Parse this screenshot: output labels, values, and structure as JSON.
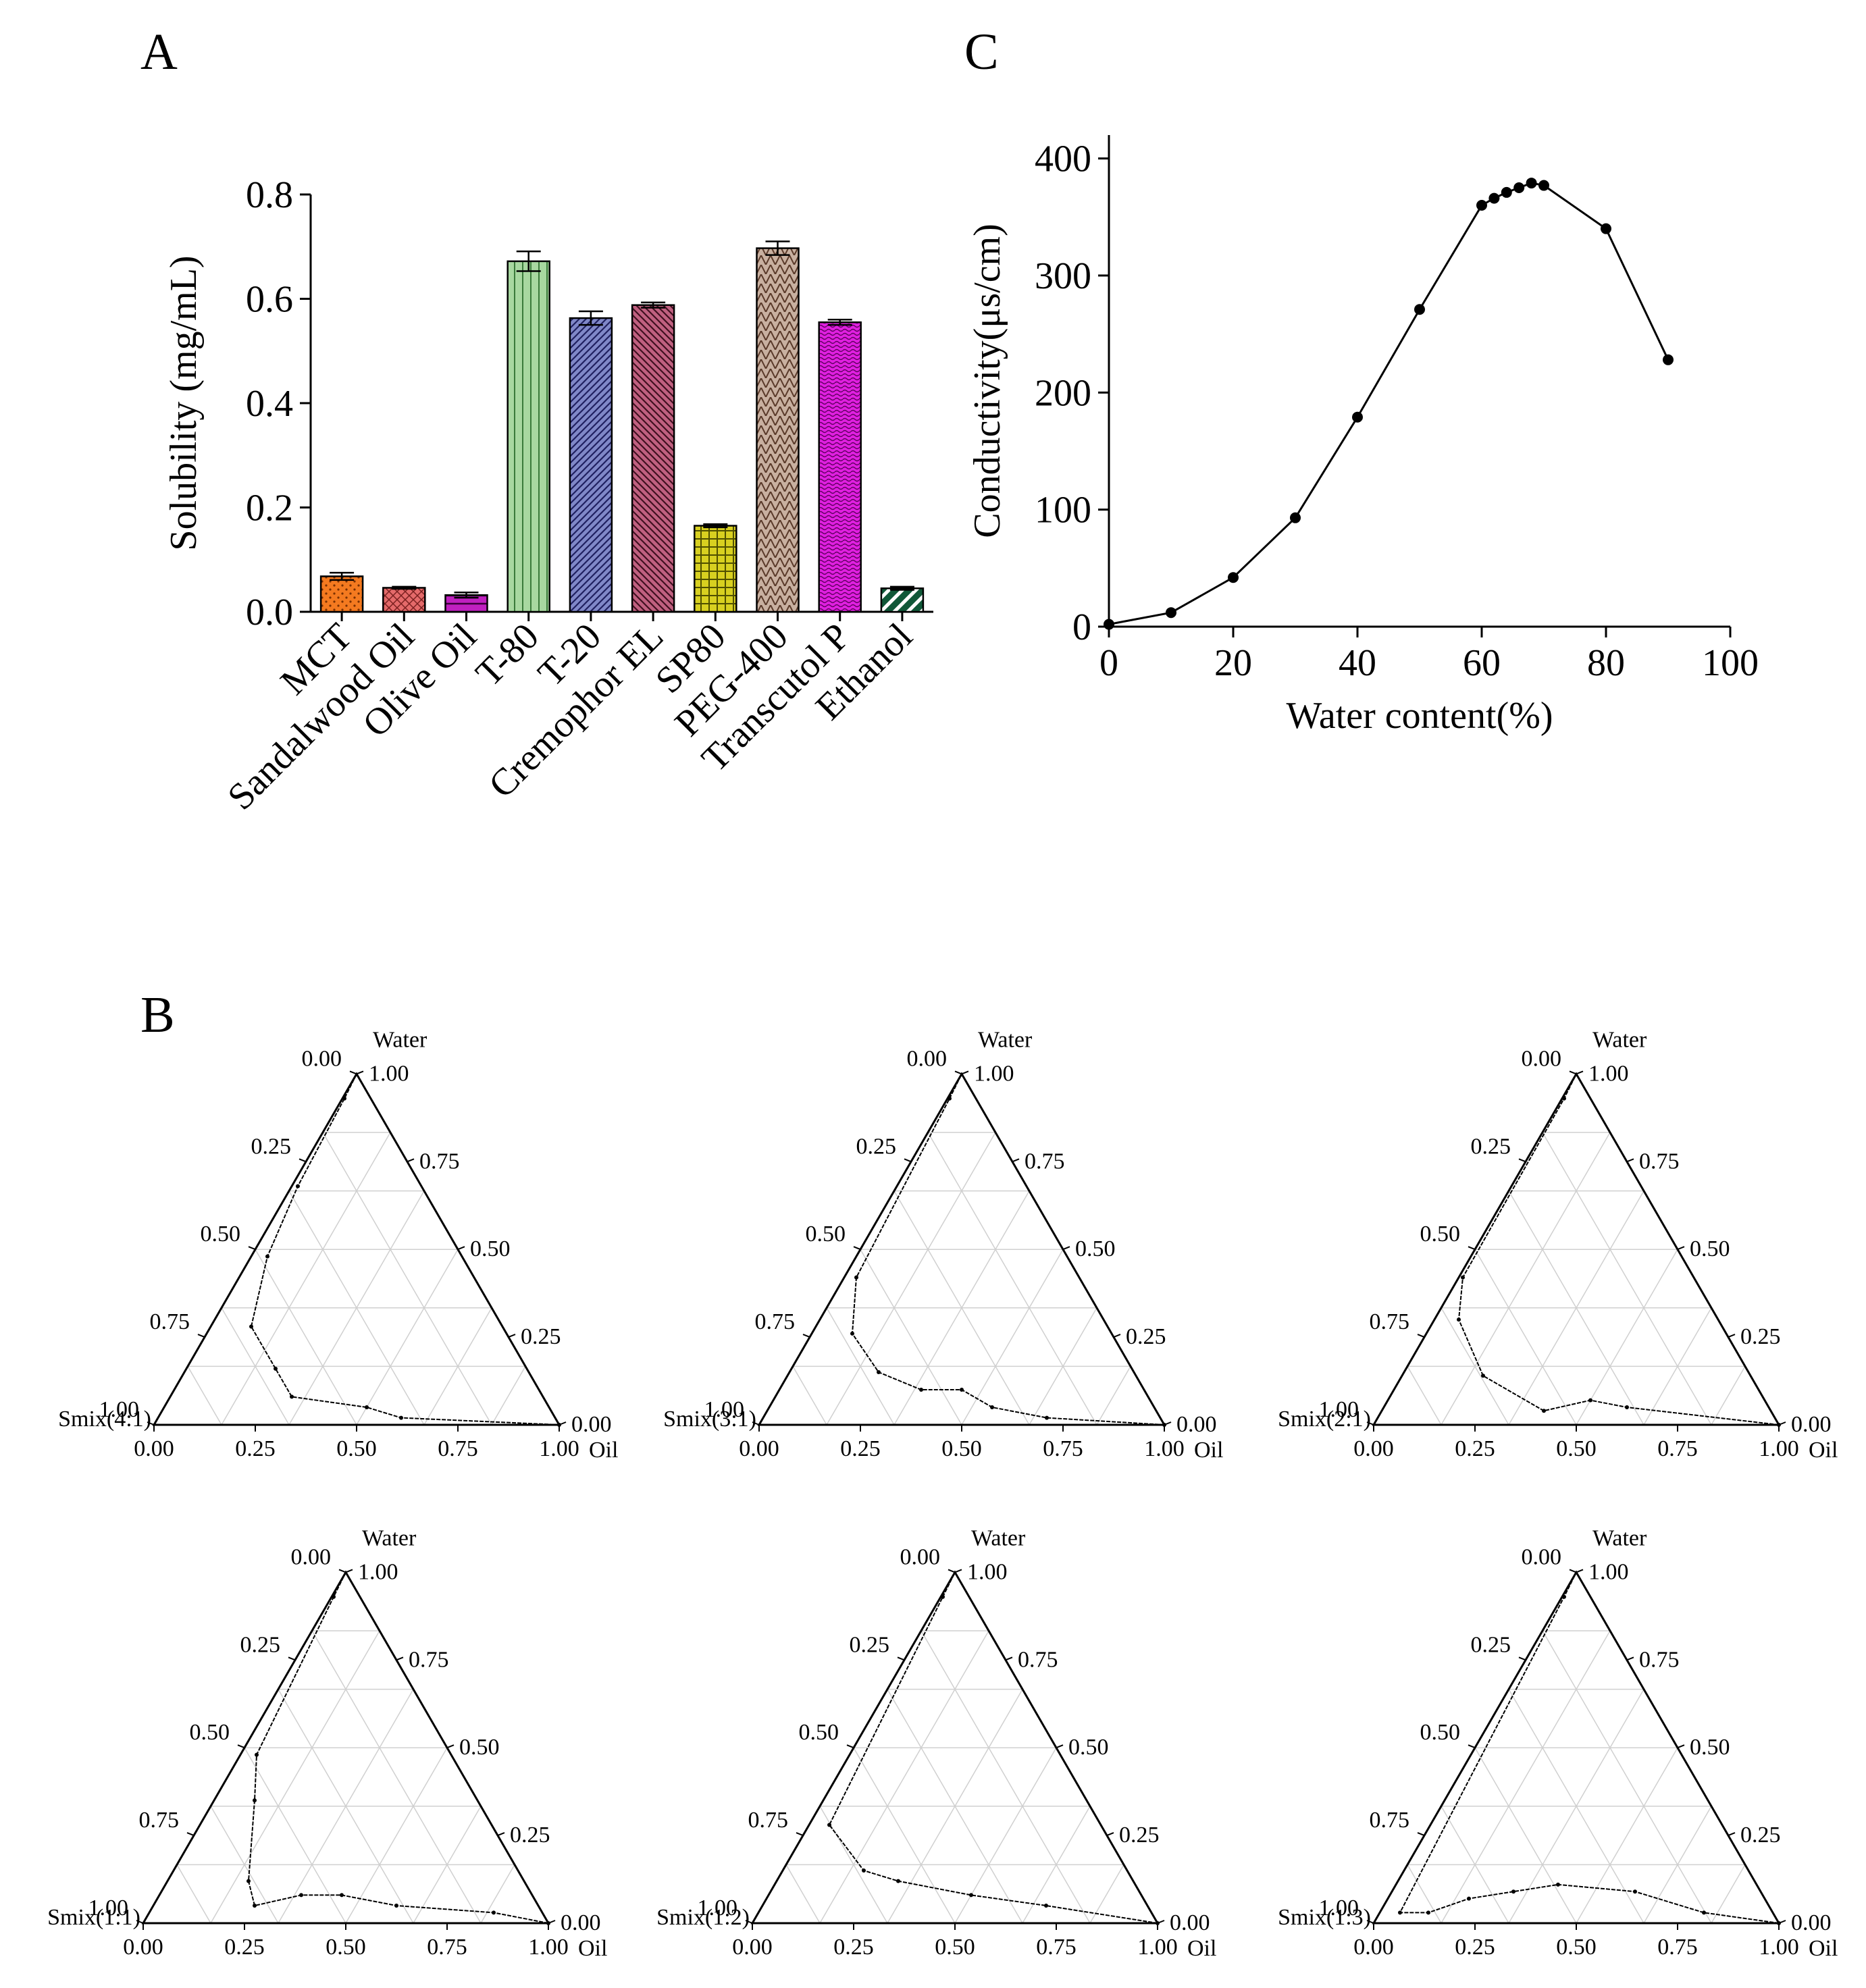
{
  "figure_labels": {
    "panel_a": "A",
    "panel_b": "B",
    "panel_c": "C"
  },
  "chart_data": [
    {
      "id": "A",
      "type": "bar",
      "title": "",
      "xlabel": "",
      "ylabel": "Solubility (mg/mL)",
      "ylim": [
        0,
        0.8
      ],
      "yticks": [
        "0.0",
        "0.2",
        "0.4",
        "0.6",
        "0.8"
      ],
      "categories": [
        "MCT",
        "Sandalwood Oil",
        "Olive Oil",
        "T-80",
        "T-20",
        "Cremophor EL",
        "SP80",
        "PEG-400",
        "Transcutol P",
        "Ethanol"
      ],
      "values": [
        0.068,
        0.046,
        0.032,
        0.672,
        0.563,
        0.588,
        0.165,
        0.697,
        0.555,
        0.045
      ],
      "errors": [
        0.007,
        0.002,
        0.005,
        0.019,
        0.013,
        0.005,
        0.003,
        0.013,
        0.005,
        0.003
      ],
      "colors": [
        "#f47a20",
        "#e46a6a",
        "#c020c0",
        "#a8d8a0",
        "#8088c8",
        "#c06080",
        "#d8d020",
        "#c8b0a0",
        "#e020e0",
        "#105838"
      ],
      "grid": false,
      "legend": "none"
    },
    {
      "id": "C",
      "type": "line",
      "title": "",
      "xlabel": "Water content(%)",
      "ylabel": "Conductivity(μs/cm)",
      "xlim": [
        0,
        100
      ],
      "ylim": [
        0,
        420
      ],
      "xticks": [
        "0",
        "20",
        "40",
        "60",
        "80",
        "100"
      ],
      "yticks": [
        "0",
        "100",
        "200",
        "300",
        "400"
      ],
      "x": [
        0,
        10,
        20,
        30,
        40,
        50,
        60,
        62,
        64,
        66,
        68,
        70,
        80,
        90
      ],
      "y": [
        2,
        12,
        42,
        93,
        179,
        271,
        360,
        366,
        371,
        375,
        379,
        377,
        340,
        228
      ],
      "grid": false,
      "legend": "none"
    },
    {
      "id": "B",
      "type": "ternary",
      "axis_labels": {
        "top": "Water",
        "right": "Oil"
      },
      "left_tick_labels": [
        "1.00",
        "0.75",
        "0.50",
        "0.25",
        "0.00"
      ],
      "right_tick_labels": [
        "1.00",
        "0.75",
        "0.50",
        "0.25",
        "0.00"
      ],
      "bottom_tick_labels": [
        "0.00",
        "0.25",
        "0.50",
        "0.75",
        "1.00"
      ],
      "plots": [
        {
          "label": "Smix(4:1)",
          "boundary": [
            [
              1.0,
              0.0
            ],
            [
              0.6,
              0.02
            ],
            [
              0.5,
              0.05
            ],
            [
              0.3,
              0.08
            ],
            [
              0.22,
              0.16
            ],
            [
              0.1,
              0.28
            ],
            [
              0.04,
              0.48
            ],
            [
              0.015,
              0.68
            ],
            [
              0.005,
              0.93
            ]
          ]
        },
        {
          "label": "Smix(3:1)",
          "boundary": [
            [
              1.0,
              0.0
            ],
            [
              0.7,
              0.02
            ],
            [
              0.55,
              0.05
            ],
            [
              0.45,
              0.1
            ],
            [
              0.35,
              0.1
            ],
            [
              0.22,
              0.15
            ],
            [
              0.1,
              0.26
            ],
            [
              0.03,
              0.42
            ],
            [
              0.005,
              0.93
            ]
          ]
        },
        {
          "label": "Smix(2:1)",
          "boundary": [
            [
              1.0,
              0.0
            ],
            [
              0.6,
              0.05
            ],
            [
              0.5,
              0.07
            ],
            [
              0.4,
              0.04
            ],
            [
              0.2,
              0.14
            ],
            [
              0.06,
              0.3
            ],
            [
              0.01,
              0.42
            ],
            [
              0.005,
              0.93
            ]
          ]
        },
        {
          "label": "Smix(1:1)",
          "boundary": [
            [
              1.0,
              0.0
            ],
            [
              0.85,
              0.03
            ],
            [
              0.6,
              0.05
            ],
            [
              0.45,
              0.08
            ],
            [
              0.35,
              0.08
            ],
            [
              0.25,
              0.05
            ],
            [
              0.2,
              0.12
            ],
            [
              0.1,
              0.35
            ],
            [
              0.04,
              0.48
            ],
            [
              0.005,
              0.93
            ]
          ]
        },
        {
          "label": "Smix(1:2)",
          "boundary": [
            [
              1.0,
              0.0
            ],
            [
              0.7,
              0.05
            ],
            [
              0.5,
              0.08
            ],
            [
              0.3,
              0.12
            ],
            [
              0.2,
              0.15
            ],
            [
              0.05,
              0.28
            ],
            [
              0.005,
              0.93
            ]
          ]
        },
        {
          "label": "Smix(1:3)",
          "boundary": [
            [
              1.0,
              0.0
            ],
            [
              0.8,
              0.03
            ],
            [
              0.6,
              0.09
            ],
            [
              0.4,
              0.11
            ],
            [
              0.3,
              0.09
            ],
            [
              0.2,
              0.07
            ],
            [
              0.12,
              0.03
            ],
            [
              0.05,
              0.03
            ],
            [
              0.005,
              0.93
            ]
          ]
        }
      ]
    }
  ]
}
